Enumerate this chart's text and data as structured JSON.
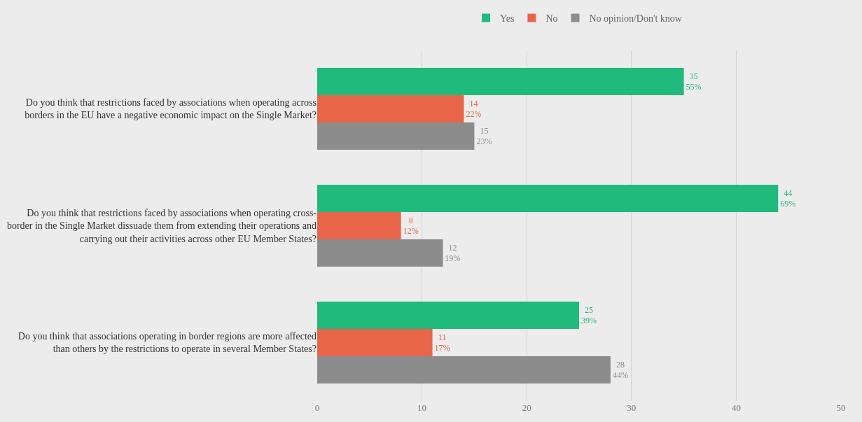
{
  "chart_data": {
    "type": "bar",
    "orientation": "horizontal",
    "categories": [
      "Do you think that restrictions faced by associations when operating across borders in the EU have a negative economic impact on the Single Market?",
      "Do you think that restrictions faced by associations when operating cross-border in the Single Market dissuade them from extending their operations and carrying out their activities across other EU Member States?",
      "Do you think that associations operating in border regions are more affected than others by the restrictions to operate in several Member States?"
    ],
    "series": [
      {
        "name": "Yes",
        "color": "#1fba7c",
        "values": [
          35,
          44,
          25
        ],
        "value_labels": [
          "35\n55%",
          "44\n69%",
          "25\n39%"
        ]
      },
      {
        "name": "No",
        "color": "#e8654a",
        "values": [
          14,
          8,
          11
        ],
        "value_labels": [
          "14\n22%",
          "8\n12%",
          "11\n17%"
        ]
      },
      {
        "name": "No opinion/Don't know",
        "color": "#8c8c8c",
        "values": [
          15,
          12,
          28
        ],
        "value_labels": [
          "15\n23%",
          "12\n19%",
          "28\n44%"
        ]
      }
    ],
    "xlim": [
      0,
      50
    ],
    "xticks": [
      0,
      10,
      20,
      30,
      40,
      50
    ],
    "grid": "x",
    "legend": "top"
  }
}
